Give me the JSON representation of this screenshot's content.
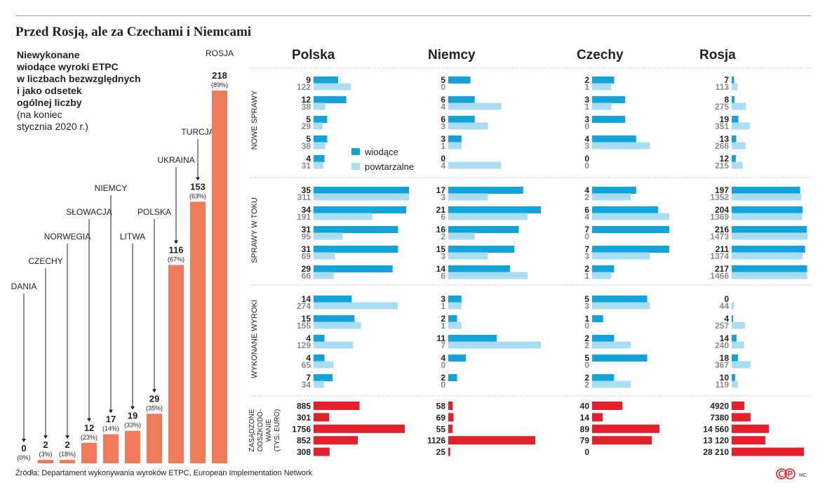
{
  "title": "Przed Rosją, ale za Czechami i Niemcami",
  "subtitle": {
    "bold_lines": [
      "Niewykonane",
      "wiodące wyroki ETPC",
      "w liczbach bezwzględnych",
      "i jako odsetek",
      "ogólnej liczby"
    ],
    "normal_lines": [
      "(na koniec",
      "stycznia 2020 r.)"
    ]
  },
  "source": "Źródła: Departament wykonywania wyroków ETPC, European Implementation Network",
  "credit": "MC",
  "colors": {
    "bar_left": "#ef7b5b",
    "leading": "#12a3dd",
    "repetitive": "#a8ddf4",
    "compensation": "#e3202b",
    "number_grey": "#8a8a8a"
  },
  "chart_data": [
    {
      "type": "bar",
      "title": "Niewykonane wiodące wyroki ETPC w liczbach bezwzględnych i jako odsetek ogólnej liczby",
      "categories": [
        "DANIA",
        "CZECHY",
        "NORWEGIA",
        "SŁOWACJA",
        "NIEMCY",
        "LITWA",
        "POLSKA",
        "UKRAINA",
        "TURCJA",
        "ROSJA"
      ],
      "values": [
        0,
        2,
        2,
        12,
        17,
        19,
        29,
        116,
        153,
        218
      ],
      "percent_labels": [
        "(0%)",
        "(3%)",
        "(18%)",
        "(23%)",
        "(14%)",
        "(33%)",
        "(35%)",
        "(67%)",
        "(63%)",
        "(89%)"
      ],
      "ylim": [
        0,
        218
      ]
    },
    {
      "type": "bar",
      "orientation": "horizontal",
      "countries": [
        "Polska",
        "Niemcy",
        "Czechy",
        "Rosja"
      ],
      "legend": {
        "leading": "wiodące",
        "repetitive": "powtarzalne"
      },
      "sections": [
        {
          "label": "NOWE SPRAWY",
          "leading": [
            [
              9,
              12,
              5,
              5,
              4
            ],
            [
              5,
              6,
              6,
              3,
              0
            ],
            [
              2,
              3,
              3,
              4,
              0
            ],
            [
              7,
              8,
              19,
              13,
              12
            ]
          ],
          "repetitive": [
            [
              122,
              38,
              29,
              38,
              31
            ],
            [
              0,
              4,
              3,
              1,
              4
            ],
            [
              1,
              1,
              0,
              3,
              0
            ],
            [
              113,
              275,
              351,
              268,
              215
            ]
          ]
        },
        {
          "label": "SPRAWY W TOKU",
          "leading": [
            [
              35,
              34,
              31,
              31,
              29
            ],
            [
              17,
              21,
              16,
              15,
              14
            ],
            [
              4,
              6,
              7,
              7,
              2
            ],
            [
              197,
              204,
              216,
              211,
              217
            ]
          ],
          "repetitive": [
            [
              311,
              191,
              95,
              69,
              66
            ],
            [
              3,
              6,
              2,
              3,
              6
            ],
            [
              2,
              4,
              0,
              3,
              1
            ],
            [
              1352,
              1369,
              1473,
              1374,
              1466
            ]
          ]
        },
        {
          "label": "WYKONANE WYROKI",
          "leading": [
            [
              14,
              15,
              4,
              4,
              7
            ],
            [
              3,
              2,
              11,
              4,
              2
            ],
            [
              5,
              1,
              2,
              5,
              2
            ],
            [
              0,
              4,
              14,
              18,
              10
            ]
          ],
          "repetitive": [
            [
              274,
              155,
              129,
              65,
              34
            ],
            [
              1,
              1,
              7,
              0,
              0
            ],
            [
              3,
              0,
              2,
              0,
              2
            ],
            [
              44,
              257,
              240,
              367,
              119
            ]
          ]
        }
      ],
      "compensation": {
        "label_lines": [
          "ZASĄDZONE",
          "ODSZKODO-",
          "WANIE",
          "(TYS. EURO)"
        ],
        "values": [
          [
            885,
            301,
            1756,
            852,
            308
          ],
          [
            58,
            69,
            55,
            1126,
            25
          ],
          [
            40,
            14,
            89,
            79,
            0
          ],
          [
            4920,
            7380,
            14560,
            13120,
            28210
          ]
        ],
        "labels": [
          [
            "885",
            "301",
            "1756",
            "852",
            "308"
          ],
          [
            "58",
            "69",
            "55",
            "1126",
            "25"
          ],
          [
            "40",
            "14",
            "89",
            "79",
            "0"
          ],
          [
            "4920",
            "7380",
            "14 560",
            "13 120",
            "28 210"
          ]
        ]
      }
    }
  ]
}
